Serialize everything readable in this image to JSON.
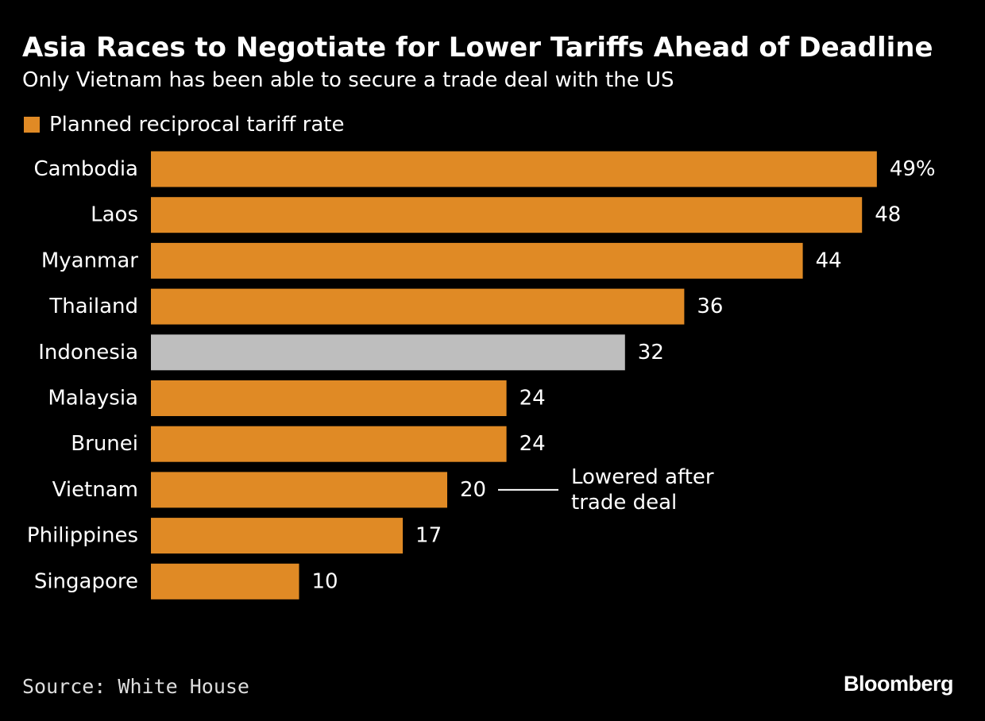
{
  "header": {
    "title": "Asia Races to Negotiate for Lower Tariffs Ahead of Deadline",
    "subtitle": "Only Vietnam has been able to secure a trade deal with the US"
  },
  "legend": {
    "label": "Planned reciprocal tariff rate"
  },
  "colors": {
    "bar": "#E08A25",
    "highlight": "#BEBEBE",
    "background": "#000000",
    "text": "#FFFFFF"
  },
  "chart_data": {
    "type": "bar",
    "orientation": "horizontal",
    "title": "Asia Races to Negotiate for Lower Tariffs Ahead of Deadline",
    "subtitle": "Only Vietnam has been able to secure a trade deal with the US",
    "xlabel": "",
    "ylabel": "",
    "xlim": [
      0,
      50
    ],
    "grid": false,
    "legend_position": "top-left",
    "series": [
      {
        "name": "Planned reciprocal tariff rate",
        "values": [
          49,
          48,
          44,
          36,
          32,
          24,
          24,
          20,
          17,
          10
        ]
      }
    ],
    "categories": [
      "Cambodia",
      "Laos",
      "Myanmar",
      "Thailand",
      "Indonesia",
      "Malaysia",
      "Brunei",
      "Vietnam",
      "Philippines",
      "Singapore"
    ],
    "values": [
      49,
      48,
      44,
      36,
      32,
      24,
      24,
      20,
      17,
      10
    ],
    "value_labels": [
      "49%",
      "48",
      "44",
      "36",
      "32",
      "24",
      "24",
      "20",
      "17",
      "10"
    ],
    "highlighted_category": "Indonesia",
    "annotations": [
      {
        "category": "Vietnam",
        "lines": [
          "Lowered after",
          "trade deal"
        ]
      }
    ]
  },
  "footer": {
    "source": "Source: White House",
    "brand": "Bloomberg"
  }
}
